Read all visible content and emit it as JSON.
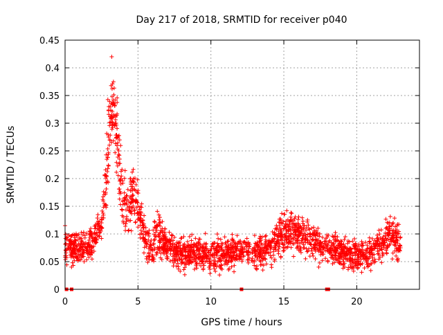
{
  "chart_data": {
    "type": "scatter",
    "title": "Day 217 of 2018, SRMTID for receiver p040",
    "xlabel": "GPS time / hours",
    "ylabel": "SRMTID / TECUs",
    "xlim": [
      0,
      24.3
    ],
    "ylim": [
      0,
      0.45
    ],
    "xticks": [
      0,
      5,
      10,
      15,
      20
    ],
    "yticks": [
      0,
      0.05,
      0.1,
      0.15,
      0.2,
      0.25,
      0.3,
      0.35,
      0.4,
      0.45
    ],
    "ytick_labels": [
      "0",
      "0.05",
      "0.1",
      "0.15",
      "0.2",
      "0.25",
      "0.3",
      "0.35",
      "0.4",
      "0.45"
    ],
    "grid": true,
    "marker": "+",
    "color": "#ff0000",
    "zero_markers_x": [
      0.1,
      0.45,
      12.1,
      17.95,
      18.05
    ],
    "series": [
      {
        "name": "SRMTID",
        "x_range": [
          0,
          23
        ],
        "points_sample": [
          [
            0.0,
            0.115
          ],
          [
            0.5,
            0.07
          ],
          [
            1.0,
            0.06
          ],
          [
            1.5,
            0.075
          ],
          [
            2.0,
            0.1
          ],
          [
            2.5,
            0.12
          ],
          [
            2.8,
            0.2
          ],
          [
            3.0,
            0.33
          ],
          [
            3.2,
            0.42
          ],
          [
            3.5,
            0.3
          ],
          [
            3.8,
            0.2
          ],
          [
            4.0,
            0.12
          ],
          [
            4.5,
            0.2
          ],
          [
            5.0,
            0.15
          ],
          [
            5.5,
            0.09
          ],
          [
            6.0,
            0.06
          ],
          [
            6.5,
            0.13
          ],
          [
            7.0,
            0.08
          ],
          [
            8.0,
            0.06
          ],
          [
            9.0,
            0.07
          ],
          [
            10.0,
            0.06
          ],
          [
            11.0,
            0.075
          ],
          [
            12.0,
            0.07
          ],
          [
            13.0,
            0.065
          ],
          [
            14.0,
            0.08
          ],
          [
            15.0,
            0.11
          ],
          [
            15.5,
            0.1
          ],
          [
            16.0,
            0.095
          ],
          [
            17.0,
            0.09
          ],
          [
            17.5,
            0.08
          ],
          [
            18.0,
            0.08
          ],
          [
            18.5,
            0.07
          ],
          [
            19.0,
            0.07
          ],
          [
            20.0,
            0.065
          ],
          [
            21.0,
            0.07
          ],
          [
            21.5,
            0.09
          ],
          [
            22.0,
            0.11
          ],
          [
            22.5,
            0.12
          ],
          [
            23.0,
            0.075
          ]
        ],
        "envelope": {
          "x": [
            0,
            1,
            2,
            2.5,
            2.8,
            3.0,
            3.3,
            3.6,
            4.0,
            4.3,
            4.7,
            5.0,
            5.5,
            6.0,
            6.3,
            6.6,
            7.0,
            8,
            9,
            10,
            11,
            12,
            13,
            14,
            14.8,
            15.3,
            16,
            17,
            17.5,
            18,
            18.5,
            19,
            20,
            21,
            21.5,
            22,
            22.5,
            23
          ],
          "mean": [
            0.075,
            0.07,
            0.09,
            0.12,
            0.19,
            0.28,
            0.33,
            0.26,
            0.16,
            0.14,
            0.18,
            0.15,
            0.09,
            0.07,
            0.1,
            0.09,
            0.08,
            0.065,
            0.07,
            0.06,
            0.065,
            0.07,
            0.065,
            0.075,
            0.095,
            0.105,
            0.1,
            0.09,
            0.075,
            0.075,
            0.07,
            0.065,
            0.06,
            0.065,
            0.08,
            0.09,
            0.1,
            0.075
          ],
          "spread": [
            0.025,
            0.025,
            0.025,
            0.03,
            0.05,
            0.07,
            0.07,
            0.07,
            0.05,
            0.05,
            0.05,
            0.04,
            0.03,
            0.025,
            0.04,
            0.03,
            0.025,
            0.025,
            0.025,
            0.025,
            0.025,
            0.025,
            0.025,
            0.025,
            0.03,
            0.035,
            0.03,
            0.025,
            0.025,
            0.025,
            0.025,
            0.025,
            0.025,
            0.025,
            0.03,
            0.03,
            0.035,
            0.025
          ]
        },
        "n_points": 2300
      }
    ]
  }
}
